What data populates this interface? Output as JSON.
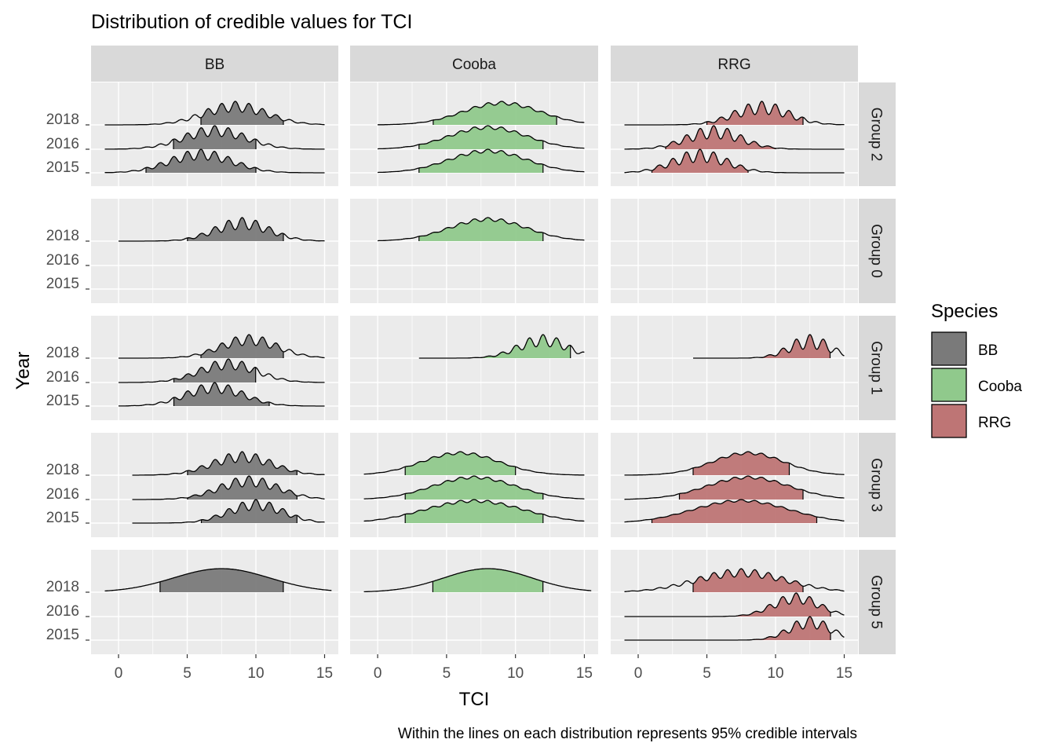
{
  "chart_data": {
    "type": "ridgeline",
    "title": "Distribution of credible values for TCI",
    "caption": "Within the lines on each distribution represents 95% credible intervals",
    "xlabel": "TCI",
    "ylabel": "Year",
    "xlim": [
      -2,
      16
    ],
    "x_ticks": [
      0,
      5,
      10,
      15
    ],
    "y_ticks": [
      "2015",
      "2016",
      "2018"
    ],
    "grid": true,
    "legend": {
      "title": "Species",
      "position": "right",
      "entries": [
        {
          "label": "BB",
          "color": "#7a7a7a"
        },
        {
          "label": "Cooba",
          "color": "#90c98c"
        },
        {
          "label": "RRG",
          "color": "#be7575"
        }
      ]
    },
    "columns": [
      "BB",
      "Cooba",
      "RRG"
    ],
    "rows": [
      "Group 2",
      "Group 0",
      "Group 1",
      "Group 3",
      "Group 5"
    ],
    "series": [
      {
        "species": "BB",
        "group": "Group 2",
        "year": "2018",
        "range": [
          -1,
          15
        ],
        "ci": [
          6,
          12
        ],
        "center": 8.5,
        "spread": 2.3,
        "wiggle": 0.45
      },
      {
        "species": "BB",
        "group": "Group 2",
        "year": "2016",
        "range": [
          -1,
          15
        ],
        "ci": [
          4,
          10
        ],
        "center": 7,
        "spread": 2.3,
        "wiggle": 0.45
      },
      {
        "species": "BB",
        "group": "Group 2",
        "year": "2015",
        "range": [
          -1,
          15
        ],
        "ci": [
          2,
          10
        ],
        "center": 6,
        "spread": 2.3,
        "wiggle": 0.45
      },
      {
        "species": "Cooba",
        "group": "Group 2",
        "year": "2018",
        "range": [
          0,
          15
        ],
        "ci": [
          4,
          13
        ],
        "center": 9,
        "spread": 2.8,
        "wiggle": 0.15
      },
      {
        "species": "Cooba",
        "group": "Group 2",
        "year": "2016",
        "range": [
          0,
          15
        ],
        "ci": [
          3,
          12
        ],
        "center": 8,
        "spread": 2.8,
        "wiggle": 0.15
      },
      {
        "species": "Cooba",
        "group": "Group 2",
        "year": "2015",
        "range": [
          0,
          15
        ],
        "ci": [
          3,
          12
        ],
        "center": 8,
        "spread": 2.8,
        "wiggle": 0.15
      },
      {
        "species": "RRG",
        "group": "Group 2",
        "year": "2018",
        "range": [
          -1,
          15
        ],
        "ci": [
          5,
          12
        ],
        "center": 9,
        "spread": 2.0,
        "wiggle": 0.55
      },
      {
        "species": "RRG",
        "group": "Group 2",
        "year": "2016",
        "range": [
          -1,
          15
        ],
        "ci": [
          2,
          10
        ],
        "center": 5.5,
        "spread": 2.0,
        "wiggle": 0.55
      },
      {
        "species": "RRG",
        "group": "Group 2",
        "year": "2015",
        "range": [
          -1,
          15
        ],
        "ci": [
          1,
          8
        ],
        "center": 4.5,
        "spread": 2.0,
        "wiggle": 0.55
      },
      {
        "species": "BB",
        "group": "Group 0",
        "year": "2018",
        "range": [
          0,
          15
        ],
        "ci": [
          5,
          12
        ],
        "center": 9,
        "spread": 2.0,
        "wiggle": 0.5
      },
      {
        "species": "Cooba",
        "group": "Group 0",
        "year": "2018",
        "range": [
          0,
          15
        ],
        "ci": [
          3,
          12
        ],
        "center": 8,
        "spread": 2.8,
        "wiggle": 0.15
      },
      {
        "species": "BB",
        "group": "Group 1",
        "year": "2018",
        "range": [
          0,
          15
        ],
        "ci": [
          6,
          12
        ],
        "center": 9.5,
        "spread": 2.1,
        "wiggle": 0.45
      },
      {
        "species": "BB",
        "group": "Group 1",
        "year": "2016",
        "range": [
          0,
          15
        ],
        "ci": [
          4,
          10
        ],
        "center": 8,
        "spread": 2.1,
        "wiggle": 0.45
      },
      {
        "species": "BB",
        "group": "Group 1",
        "year": "2015",
        "range": [
          0,
          15
        ],
        "ci": [
          4,
          11
        ],
        "center": 7,
        "spread": 2.1,
        "wiggle": 0.45
      },
      {
        "species": "Cooba",
        "group": "Group 1",
        "year": "2018",
        "range": [
          3,
          15
        ],
        "ci": [
          7,
          14
        ],
        "center": 12,
        "spread": 1.8,
        "wiggle": 0.5
      },
      {
        "species": "RRG",
        "group": "Group 1",
        "year": "2018",
        "range": [
          4,
          15
        ],
        "ci": [
          9,
          14
        ],
        "center": 12.5,
        "spread": 1.5,
        "wiggle": 0.6
      },
      {
        "species": "BB",
        "group": "Group 3",
        "year": "2018",
        "range": [
          1,
          15
        ],
        "ci": [
          5,
          13
        ],
        "center": 9,
        "spread": 2.2,
        "wiggle": 0.45
      },
      {
        "species": "BB",
        "group": "Group 3",
        "year": "2016",
        "range": [
          1,
          15
        ],
        "ci": [
          5,
          13
        ],
        "center": 9.5,
        "spread": 2.2,
        "wiggle": 0.45
      },
      {
        "species": "BB",
        "group": "Group 3",
        "year": "2015",
        "range": [
          1,
          15
        ],
        "ci": [
          6,
          13
        ],
        "center": 10,
        "spread": 2.0,
        "wiggle": 0.45
      },
      {
        "species": "Cooba",
        "group": "Group 3",
        "year": "2018",
        "range": [
          -1,
          15
        ],
        "ci": [
          2,
          10
        ],
        "center": 6,
        "spread": 2.8,
        "wiggle": 0.12
      },
      {
        "species": "Cooba",
        "group": "Group 3",
        "year": "2016",
        "range": [
          -1,
          15
        ],
        "ci": [
          2,
          12
        ],
        "center": 7,
        "spread": 3.0,
        "wiggle": 0.12
      },
      {
        "species": "Cooba",
        "group": "Group 3",
        "year": "2015",
        "range": [
          -1,
          15
        ],
        "ci": [
          2,
          12
        ],
        "center": 7,
        "spread": 3.6,
        "wiggle": 0.12
      },
      {
        "species": "RRG",
        "group": "Group 3",
        "year": "2018",
        "range": [
          -1,
          15
        ],
        "ci": [
          4,
          11
        ],
        "center": 8,
        "spread": 2.6,
        "wiggle": 0.12
      },
      {
        "species": "RRG",
        "group": "Group 3",
        "year": "2016",
        "range": [
          -1,
          15
        ],
        "ci": [
          3,
          12
        ],
        "center": 8,
        "spread": 3.0,
        "wiggle": 0.12
      },
      {
        "species": "RRG",
        "group": "Group 3",
        "year": "2015",
        "range": [
          -1,
          15
        ],
        "ci": [
          1,
          13
        ],
        "center": 7.5,
        "spread": 3.5,
        "wiggle": 0.1
      },
      {
        "species": "BB",
        "group": "Group 5",
        "year": "2018",
        "range": [
          -1,
          15.5
        ],
        "ci": [
          3,
          12
        ],
        "center": 7.5,
        "spread": 3.5,
        "wiggle": 0.0
      },
      {
        "species": "Cooba",
        "group": "Group 5",
        "year": "2018",
        "range": [
          -1,
          15.5
        ],
        "ci": [
          4,
          12
        ],
        "center": 8,
        "spread": 3.2,
        "wiggle": 0.0
      },
      {
        "species": "RRG",
        "group": "Group 5",
        "year": "2018",
        "range": [
          -1,
          15
        ],
        "ci": [
          4,
          12
        ],
        "center": 7.5,
        "spread": 3.3,
        "wiggle": 0.35
      },
      {
        "species": "RRG",
        "group": "Group 5",
        "year": "2016",
        "range": [
          -1,
          15
        ],
        "ci": [
          7,
          14
        ],
        "center": 11.5,
        "spread": 1.7,
        "wiggle": 0.45
      },
      {
        "species": "RRG",
        "group": "Group 5",
        "year": "2015",
        "range": [
          -1,
          15
        ],
        "ci": [
          8,
          14
        ],
        "center": 12.5,
        "spread": 1.5,
        "wiggle": 0.5
      }
    ]
  }
}
